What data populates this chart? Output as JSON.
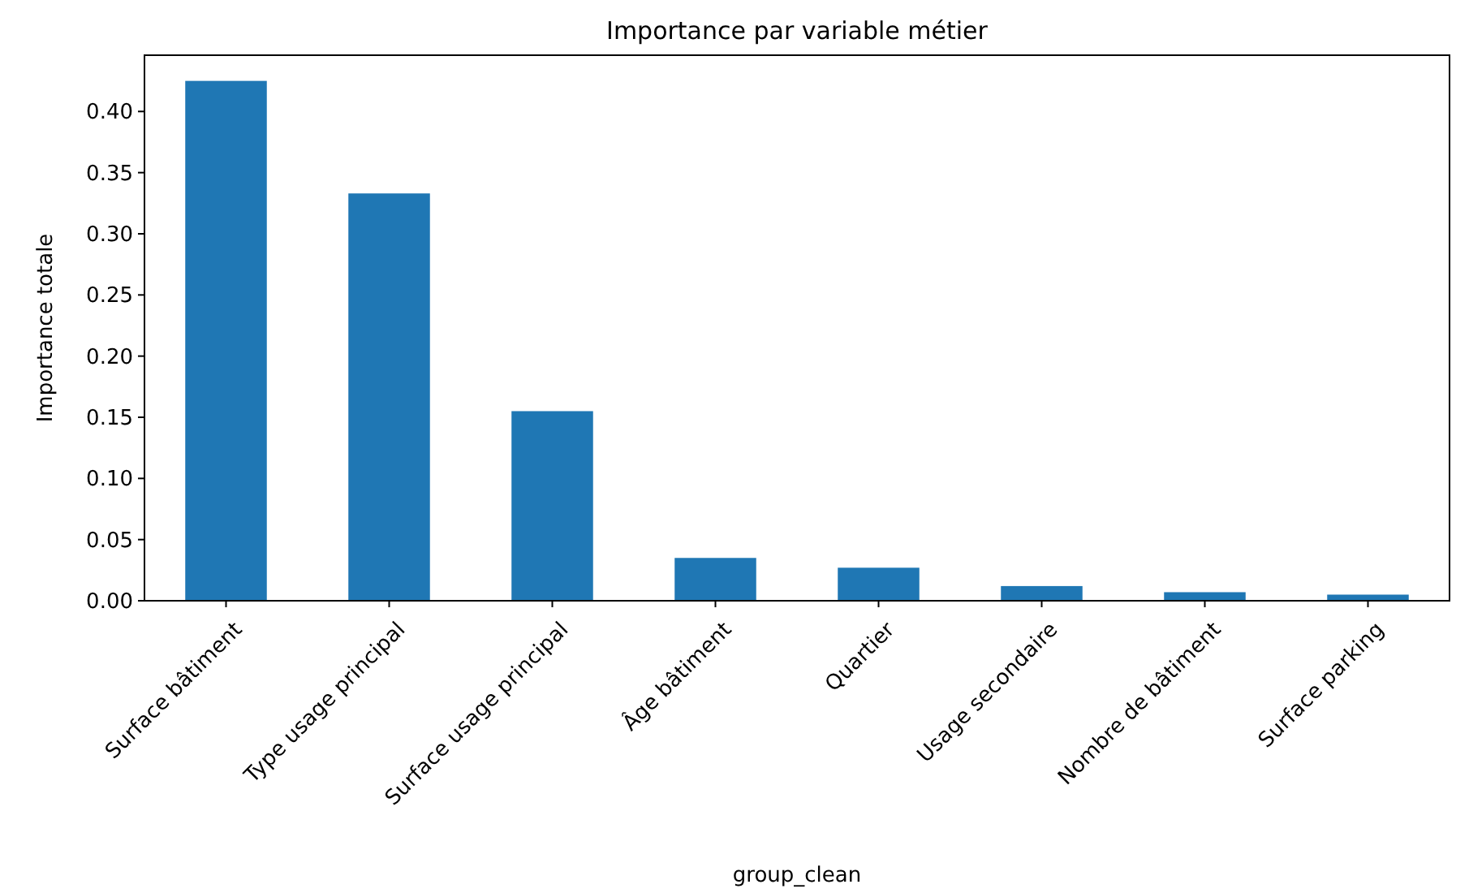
{
  "chart_data": {
    "type": "bar",
    "title": "Importance par variable métier",
    "xlabel": "group_clean",
    "ylabel": "Importance totale",
    "categories": [
      "Surface bâtiment",
      "Type usage principal",
      "Surface usage principal",
      "Âge bâtiment",
      "Quartier",
      "Usage secondaire",
      "Nombre de bâtiment",
      "Surface parking"
    ],
    "values": [
      0.425,
      0.333,
      0.155,
      0.035,
      0.027,
      0.012,
      0.007,
      0.005
    ],
    "color": "#1f77b4",
    "ylim": [
      0,
      0.446
    ],
    "yticks": [
      {
        "value": 0,
        "label": "0.00"
      },
      {
        "value": 0.05,
        "label": "0.05"
      },
      {
        "value": 0.1,
        "label": "0.10"
      },
      {
        "value": 0.15,
        "label": "0.15"
      },
      {
        "value": 0.2,
        "label": "0.20"
      },
      {
        "value": 0.25,
        "label": "0.25"
      },
      {
        "value": 0.3,
        "label": "0.30"
      },
      {
        "value": 0.35,
        "label": "0.35"
      },
      {
        "value": 0.4,
        "label": "0.40"
      }
    ],
    "grid": false
  }
}
